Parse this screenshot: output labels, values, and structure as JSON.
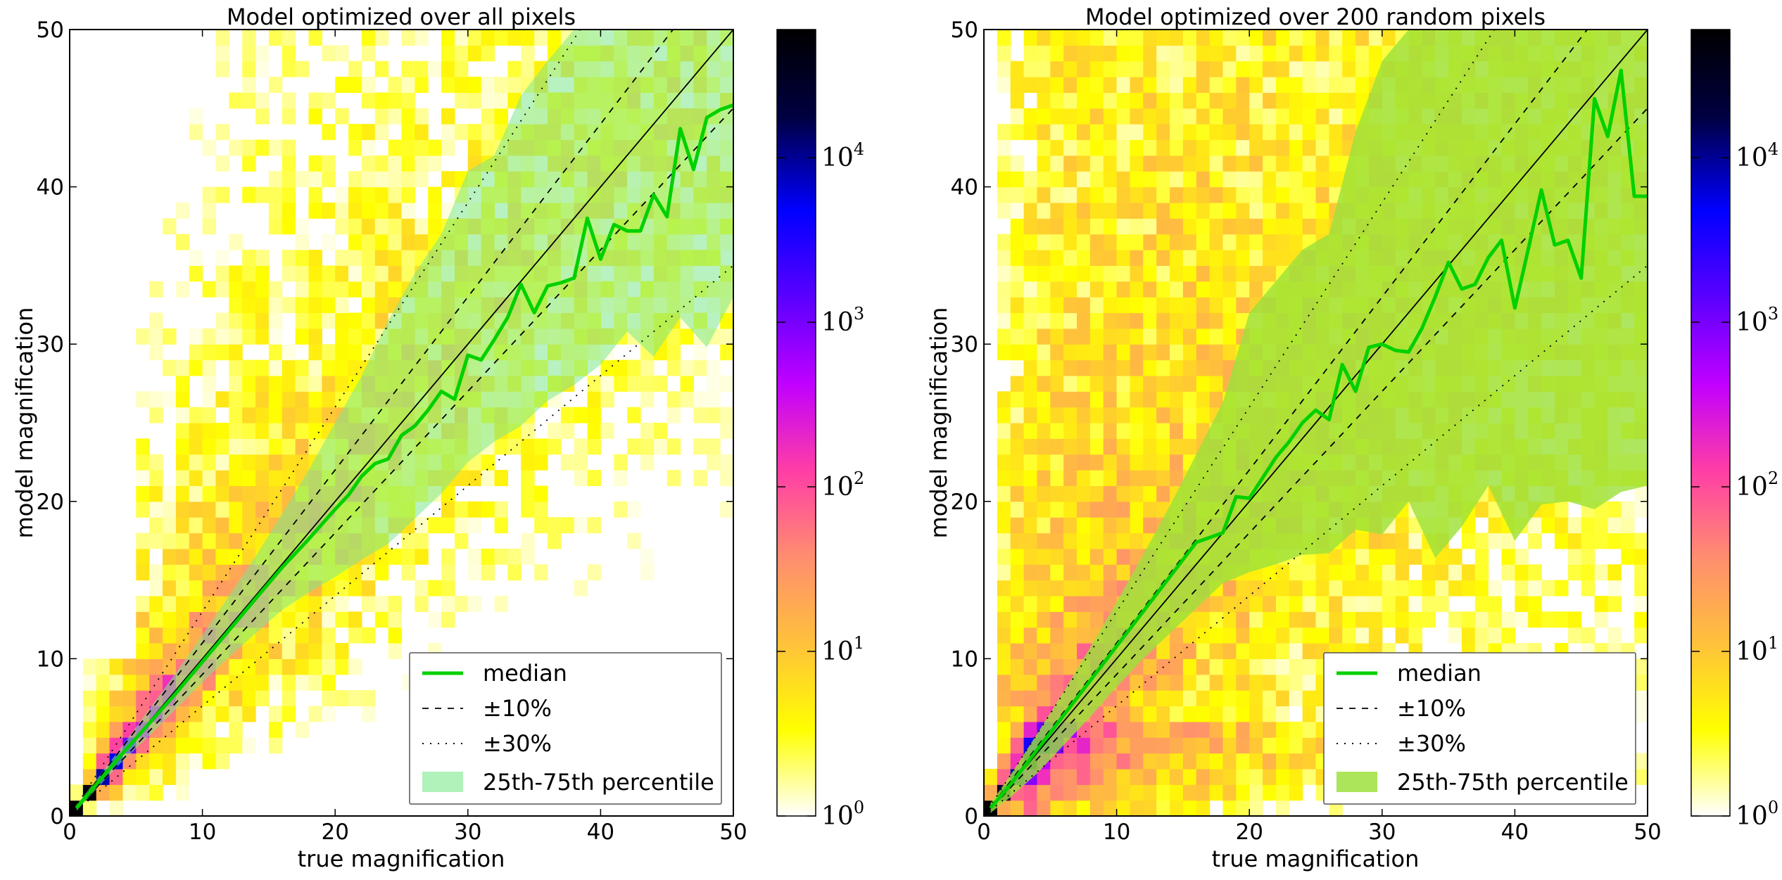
{
  "colorbar": {
    "scale": "log",
    "range": [
      1,
      60000
    ],
    "tick_base": "10",
    "tick_exponents": [
      "0",
      "1",
      "2",
      "3",
      "4"
    ],
    "colors": [
      "#ffffff",
      "#ffff00",
      "#ffc13b",
      "#ff8d70",
      "#ff3da6",
      "#c000ff",
      "#5a00ff",
      "#0000ff",
      "#000040",
      "#000000"
    ]
  },
  "chart_data": [
    {
      "type": "heatmap",
      "title": "Model optimized over all pixels",
      "xlabel": "true magnification",
      "ylabel": "model magnification",
      "xlim": [
        0,
        50
      ],
      "ylim": [
        0,
        50
      ],
      "xticks": [
        "0",
        "10",
        "20",
        "30",
        "40",
        "50"
      ],
      "yticks": [
        "0",
        "10",
        "20",
        "30",
        "40",
        "50"
      ],
      "bins": 50,
      "legend": {
        "position": "lower-right",
        "median": "median",
        "pm10": "±10%",
        "pm30": "±30%",
        "band": "25th-75th percentile"
      },
      "median_line": {
        "x": [
          0.5,
          2,
          4,
          6,
          8,
          10,
          12,
          14,
          16,
          18,
          20,
          21,
          22,
          23,
          24,
          25,
          26,
          27,
          28,
          29,
          30,
          31,
          32,
          33,
          34,
          35,
          36,
          37,
          38,
          39,
          40,
          41,
          42,
          43,
          44,
          45,
          46,
          47,
          48,
          49,
          50
        ],
        "y": [
          0.5,
          2,
          4,
          5.9,
          7.8,
          9.8,
          11.8,
          13.8,
          15.8,
          17.6,
          19.5,
          20.4,
          21.6,
          22.4,
          22.7,
          24.2,
          24.8,
          25.8,
          27,
          26.5,
          29.3,
          29,
          30.3,
          31.7,
          33.8,
          32,
          33.7,
          33.9,
          34.2,
          38,
          35.4,
          37.6,
          37.2,
          37.2,
          39.5,
          38.1,
          43.7,
          41.1,
          44.4,
          44.9,
          45.2
        ]
      },
      "percentile_band": {
        "x": [
          0.5,
          2,
          4,
          6,
          8,
          10,
          12,
          14,
          16,
          18,
          20,
          22,
          24,
          26,
          28,
          30,
          32,
          34,
          36,
          38,
          40,
          42,
          44,
          46,
          48,
          50
        ],
        "upper": [
          0.7,
          2.3,
          4.5,
          6.8,
          9.1,
          11.5,
          14,
          16.5,
          19.2,
          22,
          25,
          28,
          31.5,
          34.5,
          37,
          41,
          42,
          45.8,
          48,
          50,
          50,
          50,
          50,
          50,
          50,
          50
        ],
        "lower": [
          0.3,
          1.7,
          3.5,
          5.1,
          6.8,
          8.5,
          10.1,
          11.6,
          13.1,
          14.2,
          15.2,
          16.3,
          17.3,
          18.9,
          20.5,
          22.5,
          23.8,
          24.8,
          26.4,
          27.4,
          28.7,
          30.8,
          29.2,
          31.7,
          29.8,
          33
        ]
      }
    },
    {
      "type": "heatmap",
      "title": "Model optimized over 200 random pixels",
      "xlabel": "true magnification",
      "ylabel": "model magnification",
      "xlim": [
        0,
        50
      ],
      "ylim": [
        0,
        50
      ],
      "xticks": [
        "0",
        "10",
        "20",
        "30",
        "40",
        "50"
      ],
      "yticks": [
        "0",
        "10",
        "20",
        "30",
        "40",
        "50"
      ],
      "bins": 50,
      "legend": {
        "position": "lower-right",
        "median": "median",
        "pm10": "±10%",
        "pm30": "±30%",
        "band": "25th-75th percentile"
      },
      "median_line": {
        "x": [
          0.5,
          2,
          4,
          6,
          8,
          10,
          12,
          14,
          16,
          18,
          19,
          20,
          21,
          22,
          23,
          24,
          25,
          26,
          27,
          28,
          29,
          30,
          31,
          32,
          33,
          34,
          35,
          36,
          37,
          38,
          39,
          40,
          41,
          42,
          43,
          44,
          45,
          46,
          47,
          48,
          49,
          50
        ],
        "y": [
          0.5,
          2,
          4.2,
          6.4,
          8.6,
          10.8,
          13,
          15.2,
          17.4,
          18,
          20.3,
          20.2,
          21.5,
          22.8,
          23.8,
          25,
          25.8,
          25.2,
          28.7,
          27,
          29.8,
          30,
          29.6,
          29.5,
          31,
          33,
          35.2,
          33.5,
          33.8,
          35.5,
          36.6,
          32.3,
          36,
          39.8,
          36.3,
          36.6,
          34.2,
          45.6,
          43.2,
          47.4,
          39.4,
          39.4
        ]
      },
      "percentile_band": {
        "x": [
          0.5,
          2,
          4,
          6,
          8,
          10,
          12,
          14,
          16,
          18,
          20,
          22,
          24,
          26,
          28,
          30,
          32,
          34,
          36,
          38,
          40,
          42,
          44,
          46,
          48,
          50
        ],
        "upper": [
          0.8,
          2.6,
          5.2,
          7.9,
          10.7,
          13.6,
          16.6,
          19.7,
          23,
          26.3,
          32,
          34,
          36,
          37,
          43.5,
          48,
          50,
          50,
          50,
          50,
          50,
          50,
          50,
          50,
          50,
          50
        ],
        "lower": [
          0.2,
          1.2,
          2.7,
          4.5,
          6.3,
          8.2,
          10,
          11.6,
          13.2,
          14.8,
          15.5,
          16,
          16.6,
          16.7,
          18.2,
          17.9,
          20,
          16.4,
          18.4,
          21,
          17.5,
          19.8,
          20,
          19.5,
          20.6,
          21
        ]
      }
    }
  ]
}
